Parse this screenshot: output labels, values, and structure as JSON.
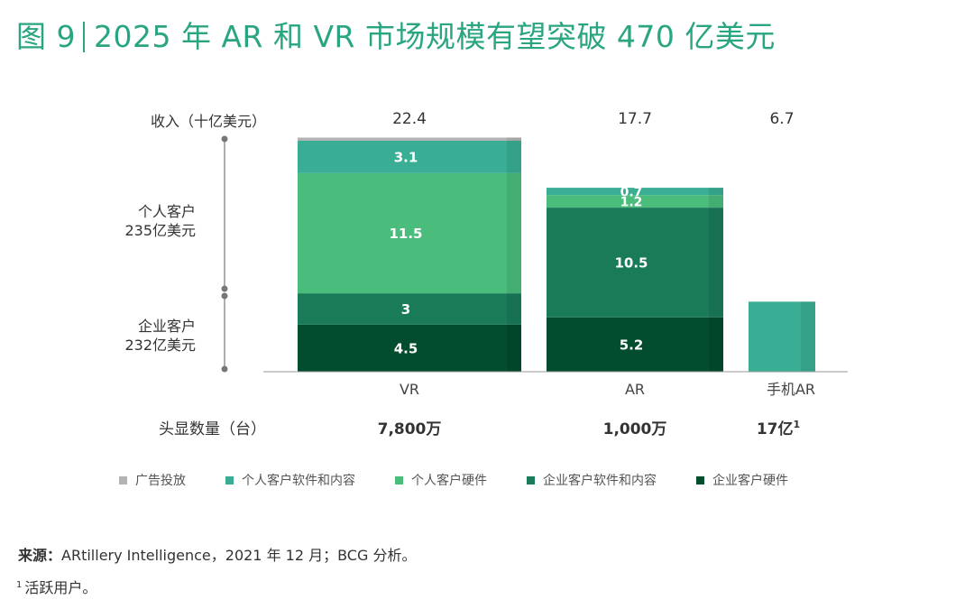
{
  "title": {
    "figure": "图 9",
    "text": "2025 年 AR 和 VR 市场规模有望突破 470 亿美元"
  },
  "chart_data": {
    "type": "bar",
    "stacked": true,
    "revenue_label": "收入（十亿美元）",
    "categories": [
      "VR",
      "AR",
      "手机AR"
    ],
    "totals": [
      "22.4",
      "17.7",
      "6.7"
    ],
    "series": [
      {
        "name": "广告投放",
        "color": "#b3b3b3",
        "values": [
          0.3,
          0.0,
          0.0
        ],
        "labels": [
          "",
          "",
          ""
        ]
      },
      {
        "name": "个人客户软件和内容",
        "color": "#3aae94",
        "values": [
          3.1,
          0.7,
          6.7
        ],
        "labels": [
          "3.1",
          "0.7",
          ""
        ]
      },
      {
        "name": "个人客户硬件",
        "color": "#4abd7c",
        "values": [
          11.5,
          1.2,
          0.0
        ],
        "labels": [
          "11.5",
          "1.2",
          ""
        ]
      },
      {
        "name": "企业客户软件和内容",
        "color": "#1a7b59",
        "values": [
          3.0,
          10.5,
          0.0
        ],
        "labels": [
          "3",
          "10.5",
          ""
        ]
      },
      {
        "name": "企业客户硬件",
        "color": "#024d2e",
        "values": [
          4.5,
          5.2,
          0.0
        ],
        "labels": [
          "4.5",
          "5.2",
          ""
        ]
      }
    ],
    "groups": [
      {
        "name": "个人客户",
        "value": "235亿美元"
      },
      {
        "name": "企业客户",
        "value": "232亿美元"
      }
    ],
    "units_label": "头显数量（台）",
    "units": [
      "7,800万",
      "1,000万",
      "17亿"
    ],
    "units_footnote_mark": "1",
    "ylim": [
      0,
      22.7
    ],
    "grid": false,
    "legend": "bottom"
  },
  "source": {
    "label": "来源：",
    "text": "ARtillery Intelligence，2021 年 12 月；BCG 分析。"
  },
  "note": {
    "mark": "1",
    "text": "活跃用户。"
  }
}
